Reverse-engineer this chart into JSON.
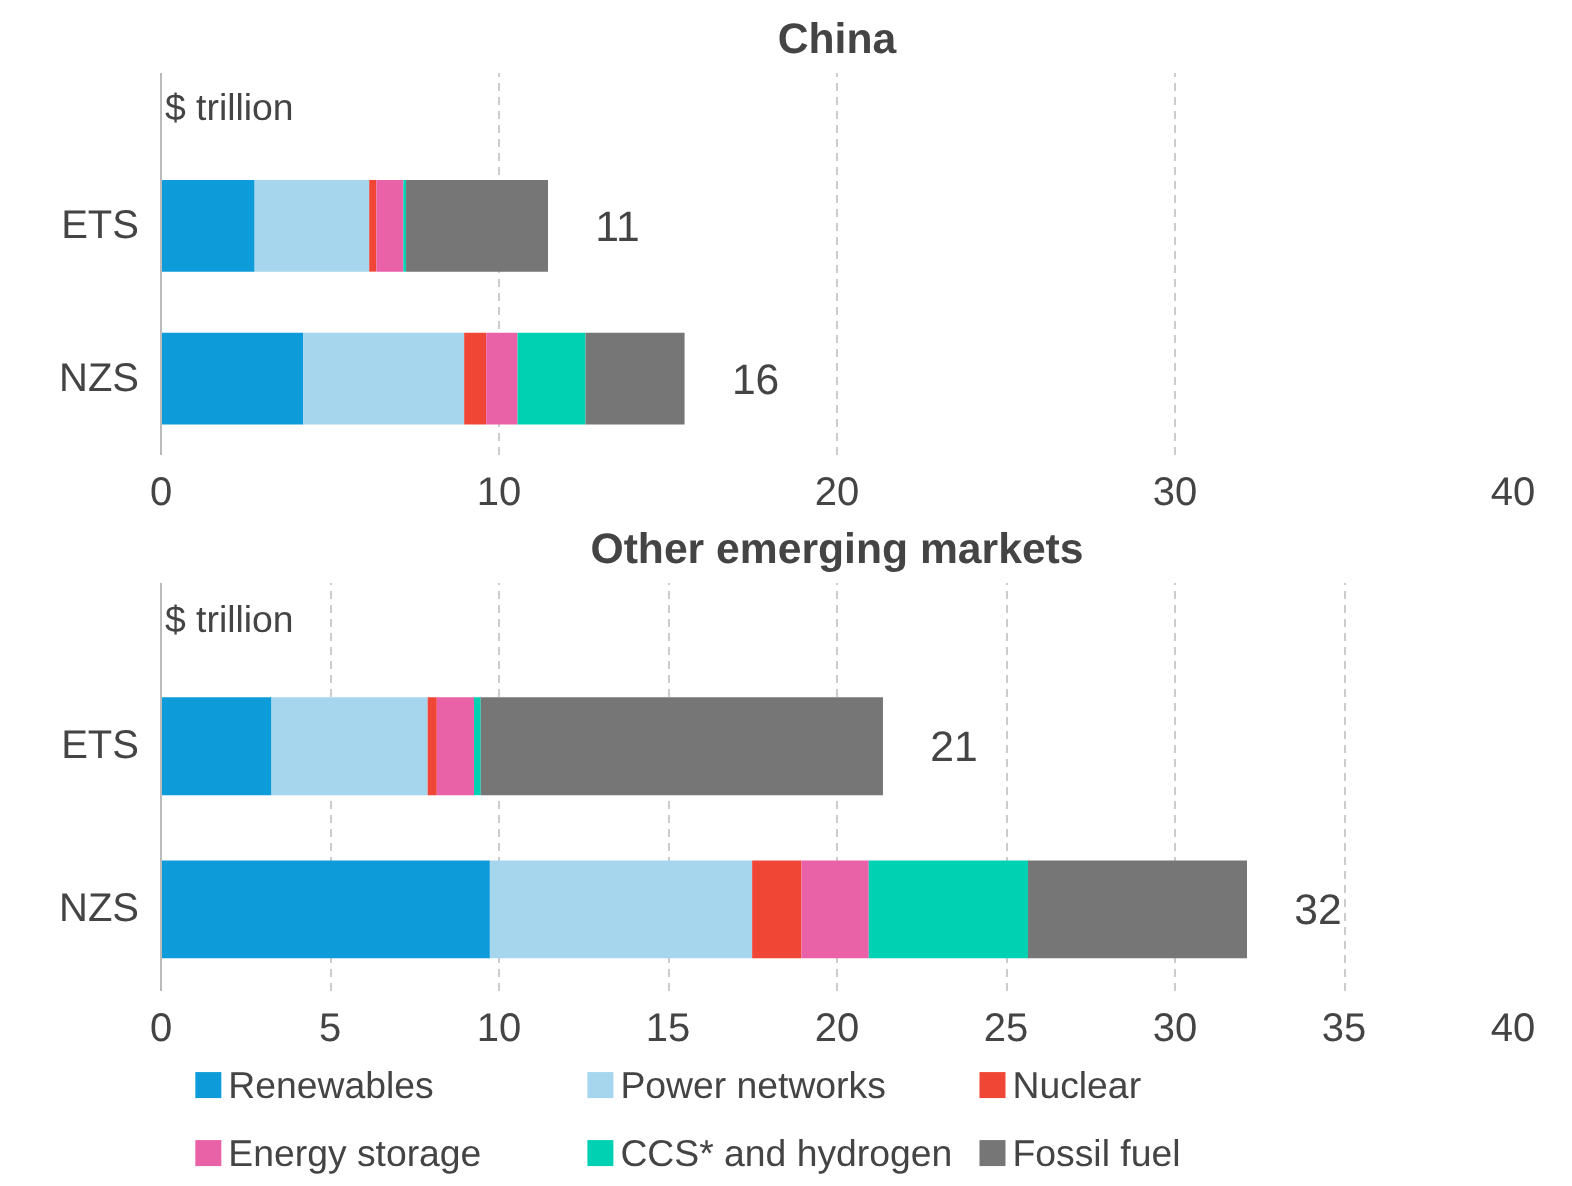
{
  "chart_data": [
    {
      "type": "bar",
      "title": "China",
      "ylabel": "$ trillion",
      "orientation": "horizontal",
      "stacked": true,
      "categories": [
        "ETS",
        "NZS"
      ],
      "series": [
        {
          "color": "#0e9bd9",
          "values": [
            2.77,
            4.21
          ]
        },
        {
          "color": "#a6d5ee",
          "values": [
            3.39,
            4.76
          ]
        },
        {
          "color": "#ef4636",
          "values": [
            0.21,
            0.65
          ]
        },
        {
          "color": "#e962a8",
          "values": [
            0.8,
            0.93
          ]
        },
        {
          "color": "#00d1b2",
          "values": [
            0.08,
            2.01
          ]
        },
        {
          "color": "#767676",
          "values": [
            4.2,
            2.93
          ]
        }
      ],
      "totals": [
        "11",
        "16"
      ],
      "xlim": [
        0,
        40
      ],
      "xticks": [
        0,
        10,
        20,
        30,
        40
      ],
      "grid": "x",
      "legend": false
    },
    {
      "type": "bar",
      "title": "Other emerging markets",
      "ylabel": "$ trillion",
      "orientation": "horizontal",
      "stacked": true,
      "categories": [
        "ETS",
        "NZS"
      ],
      "series": [
        {
          "name": "Renewables",
          "color": "#0e9bd9",
          "values": [
            3.27,
            9.73
          ]
        },
        {
          "name": "Power networks",
          "color": "#a6d5ee",
          "values": [
            4.62,
            7.76
          ]
        },
        {
          "name": "Nuclear",
          "color": "#ef4636",
          "values": [
            0.27,
            1.46
          ]
        },
        {
          "name": "Energy storage",
          "color": "#e962a8",
          "values": [
            1.1,
            1.99
          ]
        },
        {
          "name": "CCS* and hydrogen",
          "color": "#00d1b2",
          "values": [
            0.2,
            4.71
          ]
        },
        {
          "name": "Fossil fuel",
          "color": "#767676",
          "values": [
            11.9,
            6.48
          ]
        }
      ],
      "totals": [
        "21",
        "32"
      ],
      "xlim": [
        0,
        40
      ],
      "xticks": [
        0,
        5,
        10,
        15,
        20,
        25,
        30,
        35,
        40
      ],
      "grid": "x",
      "legend": "bottom"
    }
  ]
}
